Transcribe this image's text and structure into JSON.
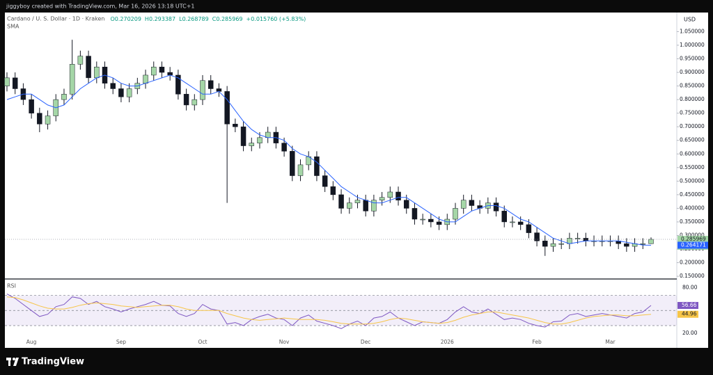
{
  "header": "jiggyboy created with TradingView.com, Mar 16, 2026 13:18 UTC+1",
  "footer": "TradingView",
  "chart_data": [
    {
      "type": "candlestick",
      "title": "Cardano / U. S. Dollar · 1D · Kraken",
      "ohlc_labels": [
        "O0.270209",
        "H0.293387",
        "L0.268789",
        "C0.285969",
        "+0.015760 (+5.83%)"
      ],
      "currency": "USD",
      "countdown": "11:41:46",
      "up_color": "#a5d6a7",
      "down_color": "#131722",
      "wick_color": "#131722",
      "categories": [
        null,
        null,
        null,
        "Aug",
        null,
        null,
        null,
        null,
        null,
        null,
        null,
        null,
        null,
        null,
        "Sep",
        null,
        null,
        null,
        null,
        null,
        null,
        null,
        null,
        null,
        "Oct",
        null,
        null,
        null,
        null,
        null,
        null,
        null,
        null,
        null,
        "Nov",
        null,
        null,
        null,
        null,
        null,
        null,
        null,
        null,
        null,
        "Dec",
        null,
        null,
        null,
        null,
        null,
        null,
        null,
        null,
        null,
        "2026",
        null,
        null,
        null,
        null,
        null,
        null,
        null,
        null,
        null,
        null,
        "Feb",
        null,
        null,
        null,
        null,
        null,
        null,
        null,
        null,
        "Mar",
        null,
        null,
        null,
        null,
        null
      ],
      "open": [
        0.85,
        0.88,
        0.84,
        0.8,
        0.75,
        0.71,
        0.74,
        0.8,
        0.82,
        0.93,
        0.96,
        0.88,
        0.92,
        0.86,
        0.84,
        0.81,
        0.84,
        0.86,
        0.89,
        0.92,
        0.9,
        0.89,
        0.82,
        0.78,
        0.8,
        0.87,
        0.84,
        0.83,
        0.71,
        0.7,
        0.63,
        0.64,
        0.66,
        0.68,
        0.64,
        0.61,
        0.52,
        0.56,
        0.59,
        0.52,
        0.48,
        0.45,
        0.4,
        0.42,
        0.43,
        0.39,
        0.43,
        0.44,
        0.46,
        0.43,
        0.4,
        0.36,
        0.36,
        0.35,
        0.34,
        0.36,
        0.4,
        0.43,
        0.41,
        0.4,
        0.42,
        0.39,
        0.35,
        0.35,
        0.34,
        0.31,
        0.28,
        0.26,
        0.27,
        0.27,
        0.29,
        0.29,
        0.28,
        0.28,
        0.28,
        0.28,
        0.27,
        0.26,
        0.27,
        0.27
      ],
      "high": [
        0.9,
        0.9,
        0.86,
        0.82,
        0.77,
        0.76,
        0.82,
        0.84,
        1.02,
        0.98,
        0.98,
        0.94,
        0.94,
        0.88,
        0.86,
        0.86,
        0.88,
        0.91,
        0.94,
        0.94,
        0.92,
        0.91,
        0.84,
        0.82,
        0.89,
        0.89,
        0.86,
        0.85,
        0.73,
        0.72,
        0.66,
        0.68,
        0.7,
        0.7,
        0.66,
        0.63,
        0.58,
        0.61,
        0.61,
        0.54,
        0.5,
        0.47,
        0.44,
        0.45,
        0.45,
        0.45,
        0.46,
        0.48,
        0.48,
        0.45,
        0.42,
        0.38,
        0.38,
        0.37,
        0.38,
        0.42,
        0.45,
        0.45,
        0.43,
        0.44,
        0.44,
        0.41,
        0.37,
        0.37,
        0.36,
        0.33,
        0.3,
        0.29,
        0.29,
        0.31,
        0.31,
        0.31,
        0.3,
        0.3,
        0.3,
        0.3,
        0.29,
        0.29,
        0.29,
        0.293
      ],
      "low": [
        0.83,
        0.82,
        0.78,
        0.73,
        0.68,
        0.69,
        0.72,
        0.78,
        0.8,
        0.91,
        0.86,
        0.86,
        0.84,
        0.82,
        0.79,
        0.79,
        0.82,
        0.84,
        0.87,
        0.88,
        0.87,
        0.8,
        0.76,
        0.76,
        0.78,
        0.82,
        0.81,
        0.42,
        0.68,
        0.61,
        0.61,
        0.62,
        0.64,
        0.62,
        0.59,
        0.5,
        0.5,
        0.54,
        0.5,
        0.46,
        0.43,
        0.38,
        0.38,
        0.4,
        0.37,
        0.37,
        0.41,
        0.42,
        0.41,
        0.38,
        0.34,
        0.34,
        0.33,
        0.32,
        0.32,
        0.34,
        0.38,
        0.39,
        0.38,
        0.38,
        0.37,
        0.33,
        0.33,
        0.32,
        0.29,
        0.26,
        0.225,
        0.24,
        0.25,
        0.25,
        0.27,
        0.26,
        0.26,
        0.26,
        0.26,
        0.25,
        0.24,
        0.24,
        0.25,
        0.269
      ],
      "close": [
        0.88,
        0.84,
        0.8,
        0.75,
        0.71,
        0.74,
        0.8,
        0.82,
        0.93,
        0.96,
        0.88,
        0.92,
        0.86,
        0.84,
        0.81,
        0.84,
        0.86,
        0.89,
        0.92,
        0.9,
        0.89,
        0.82,
        0.78,
        0.8,
        0.87,
        0.84,
        0.83,
        0.71,
        0.7,
        0.63,
        0.64,
        0.66,
        0.68,
        0.64,
        0.61,
        0.52,
        0.56,
        0.59,
        0.52,
        0.48,
        0.45,
        0.4,
        0.42,
        0.43,
        0.39,
        0.43,
        0.44,
        0.46,
        0.43,
        0.4,
        0.36,
        0.36,
        0.35,
        0.34,
        0.36,
        0.4,
        0.43,
        0.41,
        0.4,
        0.42,
        0.39,
        0.35,
        0.35,
        0.34,
        0.31,
        0.28,
        0.26,
        0.27,
        0.27,
        0.29,
        0.29,
        0.28,
        0.28,
        0.28,
        0.28,
        0.27,
        0.26,
        0.27,
        0.27,
        0.285969
      ],
      "series": [
        {
          "name": "SMA",
          "color": "#2962ff",
          "values": [
            0.8,
            0.81,
            0.82,
            0.82,
            0.8,
            0.78,
            0.77,
            0.78,
            0.81,
            0.84,
            0.86,
            0.88,
            0.89,
            0.88,
            0.86,
            0.85,
            0.85,
            0.86,
            0.87,
            0.88,
            0.89,
            0.88,
            0.86,
            0.84,
            0.82,
            0.82,
            0.83,
            0.8,
            0.76,
            0.72,
            0.69,
            0.67,
            0.66,
            0.66,
            0.65,
            0.62,
            0.6,
            0.59,
            0.57,
            0.54,
            0.51,
            0.48,
            0.46,
            0.44,
            0.43,
            0.42,
            0.42,
            0.43,
            0.44,
            0.44,
            0.42,
            0.4,
            0.38,
            0.36,
            0.35,
            0.35,
            0.37,
            0.39,
            0.4,
            0.41,
            0.41,
            0.4,
            0.38,
            0.36,
            0.35,
            0.33,
            0.31,
            0.29,
            0.28,
            0.27,
            0.275,
            0.28,
            0.28,
            0.28,
            0.28,
            0.28,
            0.275,
            0.27,
            0.265,
            0.264171
          ]
        }
      ],
      "ylim": [
        0.14,
        1.11
      ],
      "yticks": [
        {
          "value": 1.05,
          "label": "1.050000"
        },
        {
          "value": 1.0,
          "label": "1.000000"
        },
        {
          "value": 0.95,
          "label": "0.950000"
        },
        {
          "value": 0.9,
          "label": "0.900000"
        },
        {
          "value": 0.85,
          "label": "0.850000"
        },
        {
          "value": 0.8,
          "label": "0.800000"
        },
        {
          "value": 0.75,
          "label": "0.750000"
        },
        {
          "value": 0.7,
          "label": "0.700000"
        },
        {
          "value": 0.65,
          "label": "0.650000"
        },
        {
          "value": 0.6,
          "label": "0.600000"
        },
        {
          "value": 0.55,
          "label": "0.550000"
        },
        {
          "value": 0.5,
          "label": "0.500000"
        },
        {
          "value": 0.45,
          "label": "0.450000"
        },
        {
          "value": 0.4,
          "label": "0.400000"
        },
        {
          "value": 0.35,
          "label": "0.350000"
        },
        {
          "value": 0.3,
          "label": "0.300000"
        },
        {
          "value": 0.25,
          "label": "0.250000"
        },
        {
          "value": 0.2,
          "label": "0.200000"
        },
        {
          "value": 0.15,
          "label": "0.150000"
        }
      ]
    },
    {
      "type": "line",
      "title": "RSI",
      "levels": [
        70,
        50,
        30
      ],
      "band_color": "#7e57c2",
      "series": [
        {
          "color": "#7e57c2",
          "values": [
            72,
            66,
            58,
            50,
            42,
            45,
            55,
            58,
            68,
            66,
            58,
            62,
            55,
            52,
            48,
            52,
            55,
            58,
            62,
            57,
            56,
            46,
            42,
            46,
            58,
            52,
            50,
            32,
            34,
            30,
            38,
            42,
            45,
            40,
            38,
            30,
            40,
            44,
            36,
            33,
            30,
            26,
            32,
            36,
            30,
            40,
            42,
            48,
            40,
            35,
            30,
            35,
            34,
            33,
            38,
            48,
            55,
            48,
            46,
            52,
            45,
            38,
            40,
            38,
            33,
            30,
            28,
            35,
            36,
            44,
            46,
            42,
            44,
            46,
            44,
            42,
            40,
            46,
            48,
            56.66
          ]
        },
        {
          "color": "#f7c548",
          "values": [
            68,
            67,
            64,
            60,
            56,
            53,
            52,
            52,
            54,
            57,
            59,
            60,
            59,
            58,
            56,
            55,
            54,
            55,
            56,
            57,
            57,
            55,
            52,
            50,
            50,
            50,
            50,
            46,
            43,
            40,
            38,
            37,
            38,
            39,
            40,
            39,
            38,
            38,
            38,
            37,
            35,
            33,
            32,
            32,
            32,
            33,
            35,
            38,
            40,
            39,
            37,
            35,
            34,
            33,
            34,
            37,
            41,
            44,
            46,
            48,
            48,
            46,
            44,
            42,
            40,
            37,
            34,
            32,
            32,
            34,
            37,
            40,
            42,
            43,
            44,
            44,
            43,
            43,
            44,
            44.96
          ]
        }
      ],
      "ylim": [
        0.5,
        88
      ],
      "yticks": [
        {
          "value": 80,
          "label": "80.00"
        },
        {
          "value": 20,
          "label": "20.00"
        }
      ]
    }
  ]
}
